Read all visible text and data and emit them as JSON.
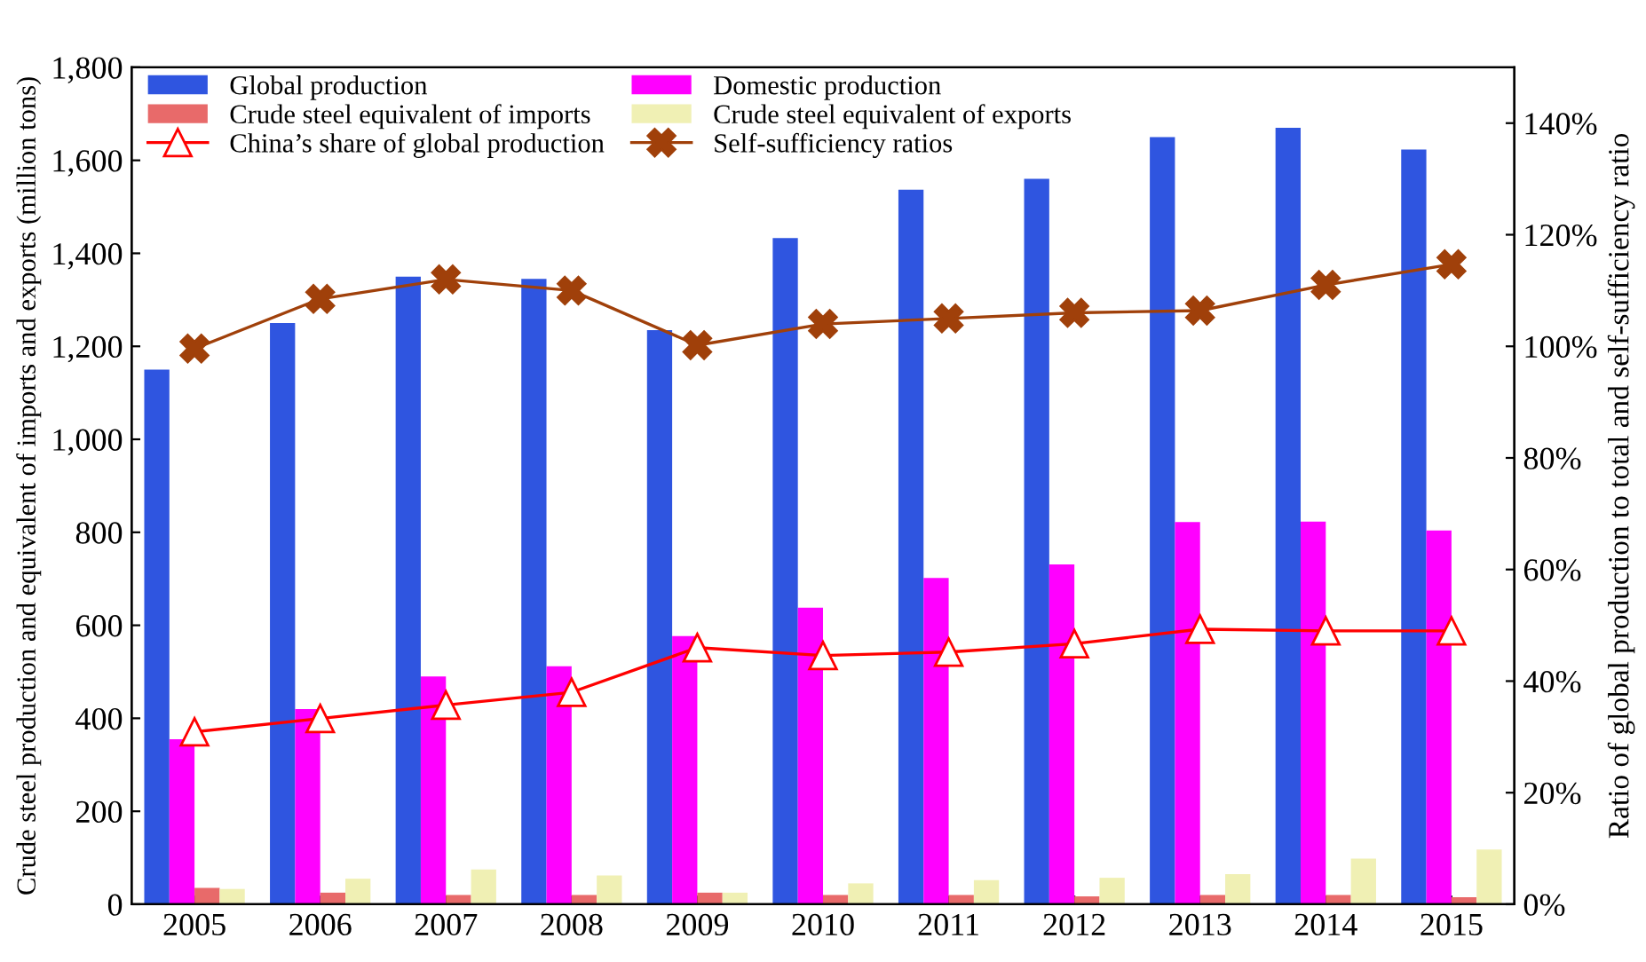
{
  "chart_data": {
    "type": "bar",
    "categories": [
      "2005",
      "2006",
      "2007",
      "2008",
      "2009",
      "2010",
      "2011",
      "2012",
      "2013",
      "2014",
      "2015"
    ],
    "ylabel": "Crude steel production and equivalent of imports and exports (million tons)",
    "y2label": "Ratio of global production to total and self-sufficiency ratio",
    "ylim": [
      0,
      1800
    ],
    "yticks": [
      {
        "value": 0,
        "label": "0"
      },
      {
        "value": 200,
        "label": "200"
      },
      {
        "value": 400,
        "label": "400"
      },
      {
        "value": 600,
        "label": "600"
      },
      {
        "value": 800,
        "label": "800"
      },
      {
        "value": 1000,
        "label": "1,000"
      },
      {
        "value": 1200,
        "label": "1,200"
      },
      {
        "value": 1400,
        "label": "1,400"
      },
      {
        "value": 1600,
        "label": "1,600"
      },
      {
        "value": 1800,
        "label": "1,800"
      }
    ],
    "y2lim": [
      0,
      150
    ],
    "y2ticks": [
      {
        "value": 0,
        "label": "0%"
      },
      {
        "value": 20,
        "label": "20%"
      },
      {
        "value": 40,
        "label": "40%"
      },
      {
        "value": 60,
        "label": "60%"
      },
      {
        "value": 80,
        "label": "80%"
      },
      {
        "value": 100,
        "label": "100%"
      },
      {
        "value": 120,
        "label": "120%"
      },
      {
        "value": 140,
        "label": "140%"
      }
    ],
    "grid": false,
    "legend": "top",
    "series": [
      {
        "name": "Global production",
        "color": "#2f55e0",
        "values": [
          1150,
          1250,
          1350,
          1345,
          1235,
          1433,
          1537,
          1560,
          1650,
          1670,
          1623
        ]
      },
      {
        "name": "Domestic production",
        "color": "#ff00ff",
        "values": [
          355,
          420,
          490,
          512,
          577,
          638,
          702,
          731,
          822,
          823,
          804
        ]
      },
      {
        "name": "Crude steel equivalent of imports",
        "color": "#e86a6a",
        "values": [
          35,
          25,
          20,
          20,
          25,
          20,
          20,
          17,
          20,
          20,
          15
        ]
      },
      {
        "name": "Crude steel equivalent of exports",
        "color": "#f0f0b4",
        "values": [
          33,
          55,
          75,
          62,
          25,
          45,
          52,
          57,
          65,
          98,
          118
        ]
      },
      {
        "name": "China’s share of global production",
        "type": "line",
        "axis": "y2",
        "marker": "triangle",
        "color": "#ff0000",
        "values": [
          30.9,
          33.3,
          35.7,
          38,
          46,
          44.6,
          45.2,
          46.7,
          49.3,
          49,
          49
        ]
      },
      {
        "name": "Self-sufficiency ratios",
        "type": "line",
        "axis": "y2",
        "marker": "cross",
        "color": "#a0400a",
        "values": [
          99.6,
          108.5,
          112,
          110,
          100.2,
          104,
          105,
          106,
          106.4,
          111,
          114.7
        ]
      }
    ]
  }
}
